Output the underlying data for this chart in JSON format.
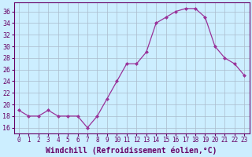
{
  "x": [
    0,
    1,
    2,
    3,
    4,
    5,
    6,
    7,
    8,
    9,
    10,
    11,
    12,
    13,
    14,
    15,
    16,
    17,
    18,
    19,
    20,
    21,
    22,
    23
  ],
  "y": [
    19,
    18,
    18,
    19,
    18,
    18,
    18,
    16,
    18,
    21,
    24,
    27,
    27,
    29,
    34,
    35,
    36,
    36.5,
    36.5,
    35,
    30,
    28,
    27,
    25
  ],
  "line_color": "#993399",
  "marker": "D",
  "marker_size": 2.0,
  "bg_color": "#cceeff",
  "grid_color": "#aabbcc",
  "xlabel": "Windchill (Refroidissement éolien,°C)",
  "xlabel_fontsize": 7,
  "ytick_labels": [
    "16",
    "18",
    "20",
    "22",
    "24",
    "26",
    "28",
    "30",
    "32",
    "34",
    "36"
  ],
  "yticks": [
    16,
    18,
    20,
    22,
    24,
    26,
    28,
    30,
    32,
    34,
    36
  ],
  "ylim": [
    15.0,
    37.5
  ],
  "xlim": [
    -0.5,
    23.5
  ],
  "xtick_labels": [
    "0",
    "1",
    "2",
    "3",
    "4",
    "5",
    "6",
    "7",
    "8",
    "9",
    "10",
    "11",
    "12",
    "13",
    "14",
    "15",
    "16",
    "17",
    "18",
    "19",
    "20",
    "21",
    "22",
    "23"
  ],
  "tick_color": "#660066",
  "label_color": "#660066",
  "spine_color": "#660066"
}
